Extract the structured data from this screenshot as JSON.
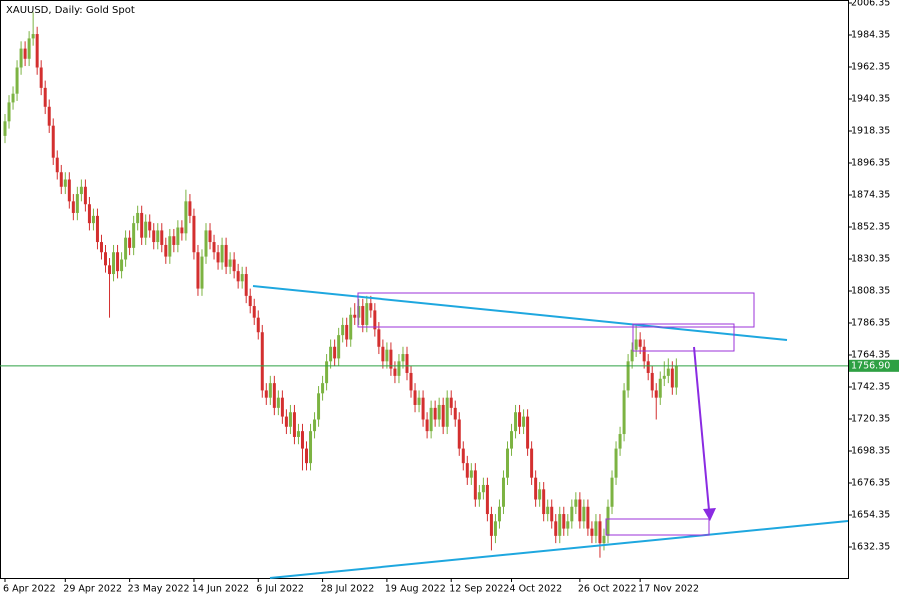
{
  "chart_data": {
    "type": "candlestick",
    "title": "XAUUSD, Daily:  Gold Spot",
    "categories": [
      "6 Apr 2022",
      null,
      null,
      null,
      null,
      null,
      null,
      null,
      null,
      null,
      null,
      null,
      null,
      null,
      null,
      "29 Apr 2022",
      null,
      null,
      null,
      null,
      null,
      null,
      null,
      null,
      null,
      null,
      null,
      null,
      null,
      null,
      null,
      "23 May 2022",
      null,
      null,
      null,
      null,
      null,
      null,
      null,
      null,
      null,
      null,
      null,
      null,
      null,
      null,
      null,
      "14 Jun 2022",
      null,
      null,
      null,
      null,
      null,
      null,
      null,
      null,
      null,
      null,
      null,
      null,
      null,
      null,
      null,
      "6 Jul 2022",
      null,
      null,
      null,
      null,
      null,
      null,
      null,
      null,
      null,
      null,
      null,
      null,
      null,
      null,
      null,
      "28 Jul 2022",
      null,
      null,
      null,
      null,
      null,
      null,
      null,
      null,
      null,
      null,
      null,
      null,
      null,
      null,
      null,
      "19 Aug 2022",
      null,
      null,
      null,
      null,
      null,
      null,
      null,
      null,
      null,
      null,
      null,
      null,
      null,
      null,
      null,
      "12 Sep 2022",
      null,
      null,
      null,
      null,
      null,
      null,
      null,
      null,
      null,
      null,
      null,
      null,
      null,
      null,
      "4 Oct 2022",
      null,
      null,
      null,
      null,
      null,
      null,
      null,
      null,
      null,
      null,
      null,
      null,
      null,
      null,
      null,
      null,
      "26 Oct 2022",
      null,
      null,
      null,
      null,
      null,
      null,
      null,
      null,
      null,
      null,
      null,
      null,
      null,
      null,
      "17 Nov 2022",
      null,
      null,
      null,
      null,
      null,
      null,
      null,
      null,
      null
    ],
    "open": [
      1915,
      1925,
      1938,
      1944,
      1962,
      1975,
      1968,
      1982,
      1985,
      1962,
      1948,
      1935,
      1922,
      1900,
      1890,
      1880,
      1885,
      1870,
      1862,
      1875,
      1880,
      1868,
      1855,
      1860,
      1842,
      1835,
      1826,
      1820,
      1835,
      1822,
      1830,
      1845,
      1838,
      1855,
      1862,
      1845,
      1856,
      1850,
      1842,
      1850,
      1840,
      1832,
      1846,
      1840,
      1852,
      1848,
      1870,
      1860,
      1835,
      1810,
      1832,
      1850,
      1842,
      1835,
      1828,
      1840,
      1825,
      1830,
      1822,
      1815,
      1820,
      1805,
      1798,
      1790,
      1780,
      1740,
      1735,
      1745,
      1728,
      1735,
      1722,
      1715,
      1725,
      1708,
      1712,
      1700,
      1690,
      1712,
      1720,
      1738,
      1745,
      1760,
      1770,
      1762,
      1778,
      1785,
      1775,
      1792,
      1790,
      1798,
      1785,
      1800,
      1795,
      1782,
      1770,
      1760,
      1768,
      1755,
      1750,
      1760,
      1765,
      1752,
      1740,
      1730,
      1735,
      1720,
      1712,
      1728,
      1720,
      1730,
      1715,
      1735,
      1728,
      1720,
      1700,
      1690,
      1680,
      1685,
      1665,
      1670,
      1675,
      1655,
      1640,
      1650,
      1660,
      1680,
      1700,
      1712,
      1725,
      1715,
      1722,
      1700,
      1680,
      1665,
      1672,
      1655,
      1660,
      1650,
      1640,
      1655,
      1645,
      1650,
      1660,
      1665,
      1650,
      1660,
      1645,
      1640,
      1650,
      1635,
      1640,
      1660,
      1680,
      1700,
      1710,
      1740,
      1760,
      1768,
      1775,
      1770,
      1760,
      1752,
      1740,
      1735,
      1748,
      1750,
      1755,
      1742
    ],
    "high": [
      1930,
      1943,
      1949,
      1967,
      1980,
      1980,
      1987,
      2000,
      1990,
      1967,
      1953,
      1940,
      1927,
      1905,
      1895,
      1890,
      1890,
      1875,
      1880,
      1885,
      1885,
      1873,
      1865,
      1865,
      1847,
      1840,
      1831,
      1840,
      1840,
      1835,
      1850,
      1850,
      1860,
      1867,
      1867,
      1861,
      1861,
      1855,
      1855,
      1855,
      1845,
      1851,
      1851,
      1857,
      1857,
      1878,
      1875,
      1865,
      1840,
      1837,
      1855,
      1855,
      1847,
      1840,
      1845,
      1845,
      1835,
      1835,
      1827,
      1825,
      1825,
      1810,
      1803,
      1795,
      1785,
      1745,
      1750,
      1750,
      1740,
      1740,
      1727,
      1730,
      1730,
      1717,
      1717,
      1705,
      1717,
      1725,
      1743,
      1750,
      1765,
      1775,
      1775,
      1783,
      1790,
      1790,
      1797,
      1800,
      1803,
      1803,
      1805,
      1805,
      1800,
      1787,
      1775,
      1773,
      1773,
      1760,
      1765,
      1770,
      1770,
      1757,
      1745,
      1740,
      1740,
      1725,
      1733,
      1733,
      1735,
      1735,
      1740,
      1740,
      1733,
      1725,
      1705,
      1695,
      1690,
      1690,
      1675,
      1680,
      1680,
      1660,
      1655,
      1665,
      1685,
      1705,
      1717,
      1730,
      1730,
      1727,
      1727,
      1705,
      1685,
      1677,
      1677,
      1665,
      1665,
      1655,
      1660,
      1660,
      1655,
      1665,
      1670,
      1670,
      1665,
      1665,
      1650,
      1655,
      1655,
      1645,
      1665,
      1685,
      1705,
      1715,
      1745,
      1765,
      1773,
      1785,
      1780,
      1775,
      1765,
      1757,
      1745,
      1753,
      1760,
      1762,
      1760,
      1762
    ],
    "low": [
      1910,
      1920,
      1933,
      1939,
      1957,
      1963,
      1963,
      1977,
      1957,
      1943,
      1930,
      1917,
      1895,
      1885,
      1875,
      1875,
      1865,
      1857,
      1857,
      1870,
      1863,
      1850,
      1850,
      1837,
      1830,
      1821,
      1790,
      1815,
      1817,
      1817,
      1825,
      1833,
      1833,
      1850,
      1840,
      1840,
      1845,
      1837,
      1837,
      1835,
      1827,
      1827,
      1835,
      1835,
      1843,
      1843,
      1855,
      1830,
      1805,
      1805,
      1827,
      1837,
      1830,
      1823,
      1823,
      1820,
      1820,
      1817,
      1810,
      1810,
      1800,
      1793,
      1785,
      1775,
      1735,
      1730,
      1730,
      1723,
      1723,
      1717,
      1710,
      1710,
      1703,
      1703,
      1685,
      1685,
      1685,
      1707,
      1715,
      1733,
      1740,
      1755,
      1757,
      1757,
      1773,
      1770,
      1770,
      1785,
      1785,
      1780,
      1780,
      1790,
      1777,
      1765,
      1755,
      1755,
      1750,
      1745,
      1745,
      1755,
      1747,
      1735,
      1725,
      1725,
      1715,
      1707,
      1707,
      1715,
      1715,
      1710,
      1710,
      1723,
      1715,
      1695,
      1685,
      1675,
      1675,
      1660,
      1660,
      1665,
      1650,
      1630,
      1635,
      1645,
      1655,
      1675,
      1695,
      1707,
      1710,
      1710,
      1695,
      1675,
      1660,
      1660,
      1650,
      1650,
      1645,
      1635,
      1635,
      1640,
      1640,
      1645,
      1655,
      1645,
      1645,
      1640,
      1635,
      1635,
      1625,
      1630,
      1635,
      1655,
      1675,
      1695,
      1705,
      1735,
      1755,
      1763,
      1765,
      1755,
      1747,
      1735,
      1720,
      1730,
      1743,
      1745,
      1737,
      1737
    ],
    "close": [
      1925,
      1938,
      1944,
      1962,
      1975,
      1968,
      1982,
      1985,
      1962,
      1948,
      1935,
      1922,
      1900,
      1890,
      1880,
      1885,
      1870,
      1862,
      1875,
      1880,
      1868,
      1855,
      1860,
      1842,
      1835,
      1826,
      1820,
      1835,
      1822,
      1830,
      1845,
      1838,
      1855,
      1862,
      1845,
      1856,
      1850,
      1842,
      1850,
      1840,
      1832,
      1846,
      1840,
      1852,
      1848,
      1870,
      1860,
      1835,
      1810,
      1832,
      1850,
      1842,
      1835,
      1828,
      1840,
      1825,
      1830,
      1822,
      1815,
      1820,
      1805,
      1798,
      1790,
      1780,
      1740,
      1735,
      1745,
      1728,
      1735,
      1722,
      1715,
      1725,
      1708,
      1712,
      1700,
      1690,
      1712,
      1720,
      1738,
      1745,
      1760,
      1770,
      1762,
      1778,
      1785,
      1775,
      1792,
      1790,
      1798,
      1785,
      1800,
      1795,
      1782,
      1770,
      1760,
      1768,
      1755,
      1750,
      1760,
      1765,
      1752,
      1740,
      1730,
      1735,
      1720,
      1712,
      1728,
      1720,
      1730,
      1715,
      1735,
      1728,
      1720,
      1700,
      1690,
      1680,
      1685,
      1665,
      1670,
      1675,
      1655,
      1640,
      1650,
      1660,
      1680,
      1700,
      1712,
      1725,
      1715,
      1722,
      1700,
      1680,
      1665,
      1672,
      1655,
      1660,
      1650,
      1640,
      1655,
      1645,
      1650,
      1660,
      1665,
      1650,
      1660,
      1645,
      1640,
      1650,
      1635,
      1640,
      1660,
      1680,
      1700,
      1710,
      1740,
      1760,
      1768,
      1775,
      1770,
      1760,
      1752,
      1740,
      1735,
      1748,
      1750,
      1755,
      1742,
      1756.9
    ],
    "up_color": "#7cb342",
    "down_color": "#d32f2f",
    "ylim": [
      1611.03,
      2008.41
    ],
    "yticks": [
      2006.35,
      1984.35,
      1962.35,
      1940.35,
      1918.35,
      1896.35,
      1874.35,
      1852.35,
      1830.35,
      1808.35,
      1786.35,
      1764.35,
      1742.35,
      1720.35,
      1698.35,
      1676.35,
      1654.35,
      1632.35
    ],
    "last_price": {
      "value": 1756.9,
      "label": "1756.90"
    },
    "last_price_color": "#2ea043"
  }
}
